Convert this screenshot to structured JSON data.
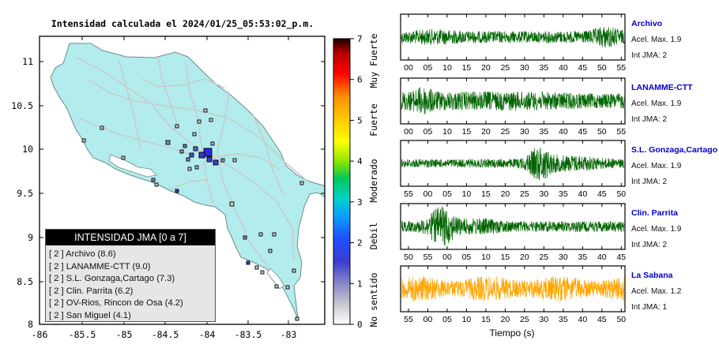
{
  "map": {
    "title": "Intensidad calculada el 2024/01/25_05:53:02_p.m.",
    "x_ticks": [
      "-86",
      "-85.5",
      "-85",
      "-84.5",
      "-84",
      "-83.5",
      "-83"
    ],
    "y_ticks": [
      "11",
      "10.5",
      "10",
      "9.5",
      "9",
      "8.5",
      "8"
    ],
    "colors": {
      "land": "#b2ecec",
      "roads": "#c8c8c8",
      "frame": "#000000"
    }
  },
  "colorbar": {
    "ticks": [
      "0",
      "1",
      "2",
      "3",
      "4",
      "5",
      "6",
      "7"
    ],
    "category_labels": [
      "No sentido",
      "Debil",
      "Moderado",
      "Fuerte",
      "Muy Fuerte"
    ]
  },
  "legend": {
    "title": "INTENSIDAD JMA [0 a 7]",
    "items": [
      "[ 2 ] Archivo (8.6)",
      "[ 2 ] LANAMME-CTT (9.0)",
      "[ 2 ] S.L. Gonzaga,Cartago (7.3)",
      "[ 2 ] Clin. Parrita (6.2)",
      "[ 2 ] OV-Rios, Rincon de Osa (4.2)",
      "[ 2 ] San Miguel (4.1)"
    ]
  },
  "traces": [
    {
      "station": "Archivo",
      "accel_label": "Acel. Max. 1.9",
      "int_label": "Int JMA: 2",
      "time_ticks": [
        "00",
        "05",
        "10",
        "15",
        "20",
        "25",
        "30",
        "35",
        "40",
        "45",
        "50",
        "55"
      ],
      "color": "#006400"
    },
    {
      "station": "LANAMME-CTT",
      "accel_label": "Acel. Max. 1.9",
      "int_label": "Int JMA: 2",
      "time_ticks": [
        "00",
        "05",
        "10",
        "15",
        "20",
        "25",
        "30",
        "35",
        "40",
        "45",
        "50",
        "55"
      ],
      "color": "#006400"
    },
    {
      "station": "S.L. Gonzaga,Cartago",
      "accel_label": "Acel. Max. 1.9",
      "int_label": "Int JMA: 2",
      "time_ticks": [
        "55",
        "00",
        "05",
        "10",
        "15",
        "20",
        "25",
        "30",
        "35",
        "40",
        "45",
        "50"
      ],
      "color": "#006400"
    },
    {
      "station": "Clin. Parrita",
      "accel_label": "Acel. Max. 1.9",
      "int_label": "Int JMA: 2",
      "time_ticks": [
        "50",
        "55",
        "00",
        "05",
        "10",
        "15",
        "20",
        "25",
        "30",
        "35",
        "40",
        "45"
      ],
      "color": "#006400"
    },
    {
      "station": "La Sabana",
      "accel_label": "Acel. Max. 1.2",
      "int_label": "Int JMA: 1",
      "time_ticks": [
        "55",
        "00",
        "05",
        "10",
        "15",
        "20",
        "25",
        "30",
        "35",
        "40",
        "45",
        "50"
      ],
      "color": "#ffa500"
    }
  ],
  "time_axis_label": "Tiempo (s)",
  "station_name_color": "#0000cc"
}
